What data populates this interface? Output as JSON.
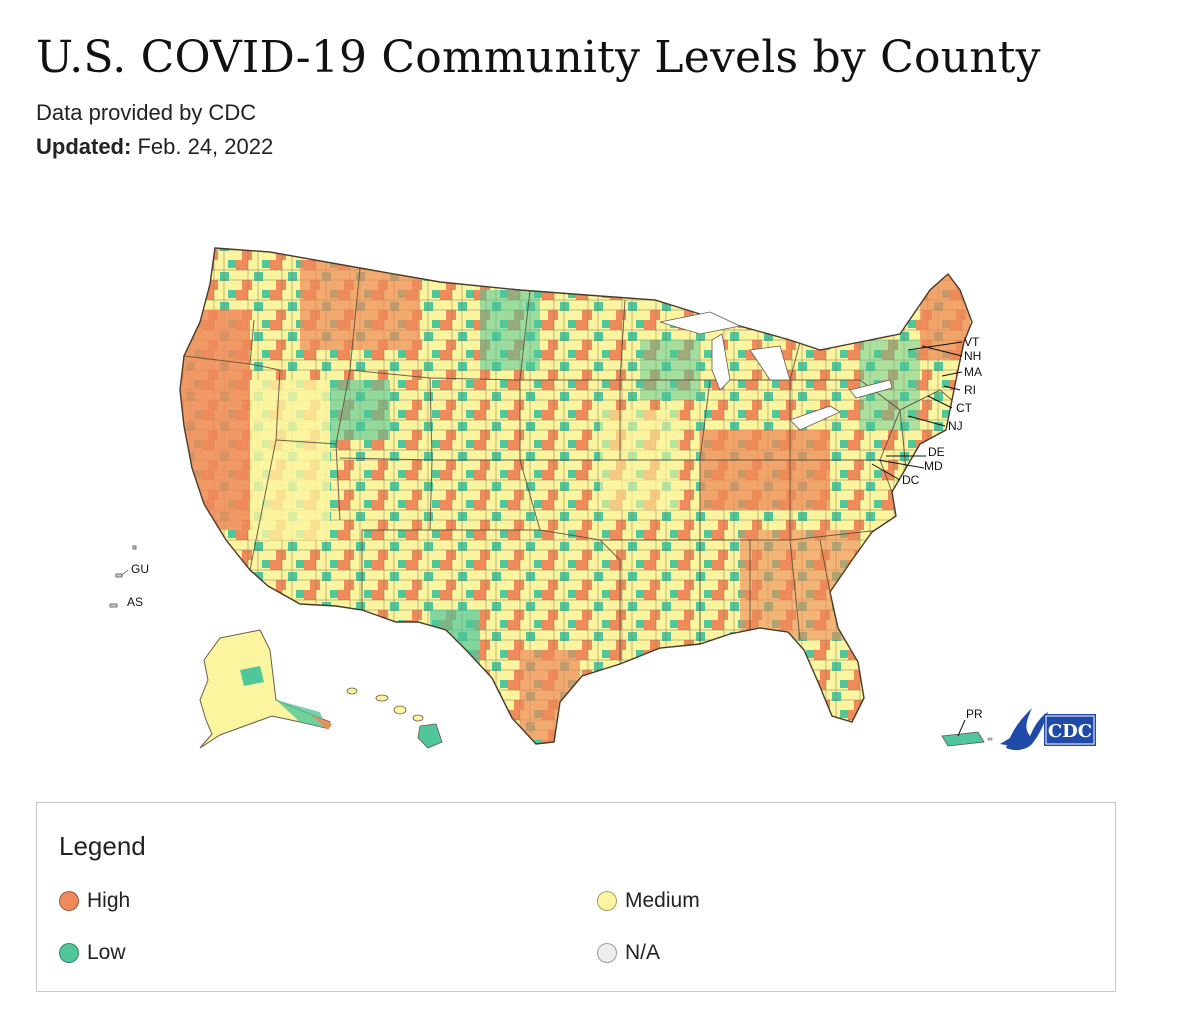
{
  "header": {
    "title": "U.S. COVID-19 Community Levels by County",
    "subtitle": "Data provided by CDC",
    "updated_label": "Updated:",
    "updated_value": "Feb. 24, 2022"
  },
  "map": {
    "state_labels": [
      "VT",
      "NH",
      "MA",
      "RI",
      "CT",
      "NJ",
      "DE",
      "MD",
      "DC"
    ],
    "territory_labels": [
      "GU",
      "AS",
      "PR"
    ],
    "logo_text": "CDC"
  },
  "legend": {
    "title": "Legend",
    "items": [
      {
        "label": "High",
        "color": "#ef8a5a"
      },
      {
        "label": "Medium",
        "color": "#fbf5a0"
      },
      {
        "label": "Low",
        "color": "#4fc79a"
      },
      {
        "label": "N/A",
        "color": "#eeeeee"
      }
    ]
  },
  "colors": {
    "high": "#ef8a5a",
    "medium": "#fbf5a0",
    "low": "#4fc79a",
    "na": "#eeeeee",
    "cdc_blue": "#1f4aa8"
  }
}
